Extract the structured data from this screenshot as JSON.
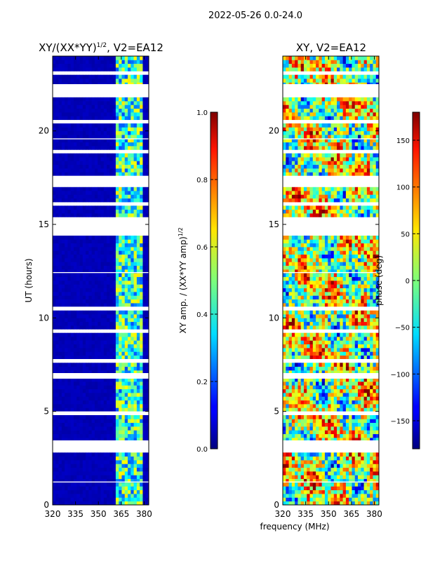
{
  "figure": {
    "suptitle": "2022-05-26 0.0-24.0",
    "xlabel": "frequency (MHz)"
  },
  "chart_data": [
    {
      "type": "heatmap",
      "title": "XY/(XX*YY)",
      "title_exponent": "1/2",
      "title_suffix": ", V2=EA12",
      "ylabel": "UT (hours)",
      "xlim": [
        320,
        383
      ],
      "ylim": [
        0,
        24
      ],
      "xticks": [
        320,
        335,
        350,
        365,
        380
      ],
      "yticks": [
        0,
        5,
        10,
        15,
        20
      ],
      "colorbar": {
        "label": "XY amp. / (XX*YY amp)",
        "label_exponent": "1/2",
        "range": [
          0.0,
          1.0
        ],
        "ticks": [
          "0.0",
          "0.2",
          "0.4",
          "0.6",
          "0.8",
          "1.0"
        ],
        "colormap": "jet"
      },
      "summary": "Mostly low normalized amplitude (~0.05) from 320-362 MHz; higher (0.3-0.6) striped structure from ~362-380 MHz; horizontal white gaps where data flagged."
    },
    {
      "type": "heatmap",
      "title": "XY, V2=EA12",
      "xlim": [
        320,
        383
      ],
      "ylim": [
        0,
        24
      ],
      "xticks": [
        320,
        335,
        350,
        365,
        380
      ],
      "yticks": [
        0,
        5,
        10,
        15,
        20
      ],
      "colorbar": {
        "label": "phase (deg)",
        "range": [
          -180,
          180
        ],
        "ticks": [
          "−150",
          "−100",
          "−50",
          "0",
          "50",
          "100",
          "150"
        ],
        "colormap": "jet"
      },
      "summary": "Noisy phase across the band, mostly between -60 and +120 deg, with horizontal flagged gaps."
    }
  ],
  "flagged_gaps_hours": [
    [
      2.85,
      3.45
    ],
    [
      6.75,
      7.05
    ],
    [
      14.5,
      15.3
    ],
    [
      17.0,
      17.6
    ],
    [
      21.8,
      22.5
    ],
    [
      10.4,
      10.6
    ],
    [
      4.9,
      5.0
    ],
    [
      18.85,
      18.95
    ],
    [
      19.55,
      19.6
    ],
    [
      12.4,
      12.45
    ],
    [
      9.3,
      9.35
    ],
    [
      7.7,
      7.8
    ],
    [
      1.2,
      1.25
    ],
    [
      16.1,
      16.15
    ],
    [
      20.5,
      20.55
    ],
    [
      23.1,
      23.15
    ]
  ],
  "rfi_band_mhz": [
    362,
    380
  ]
}
